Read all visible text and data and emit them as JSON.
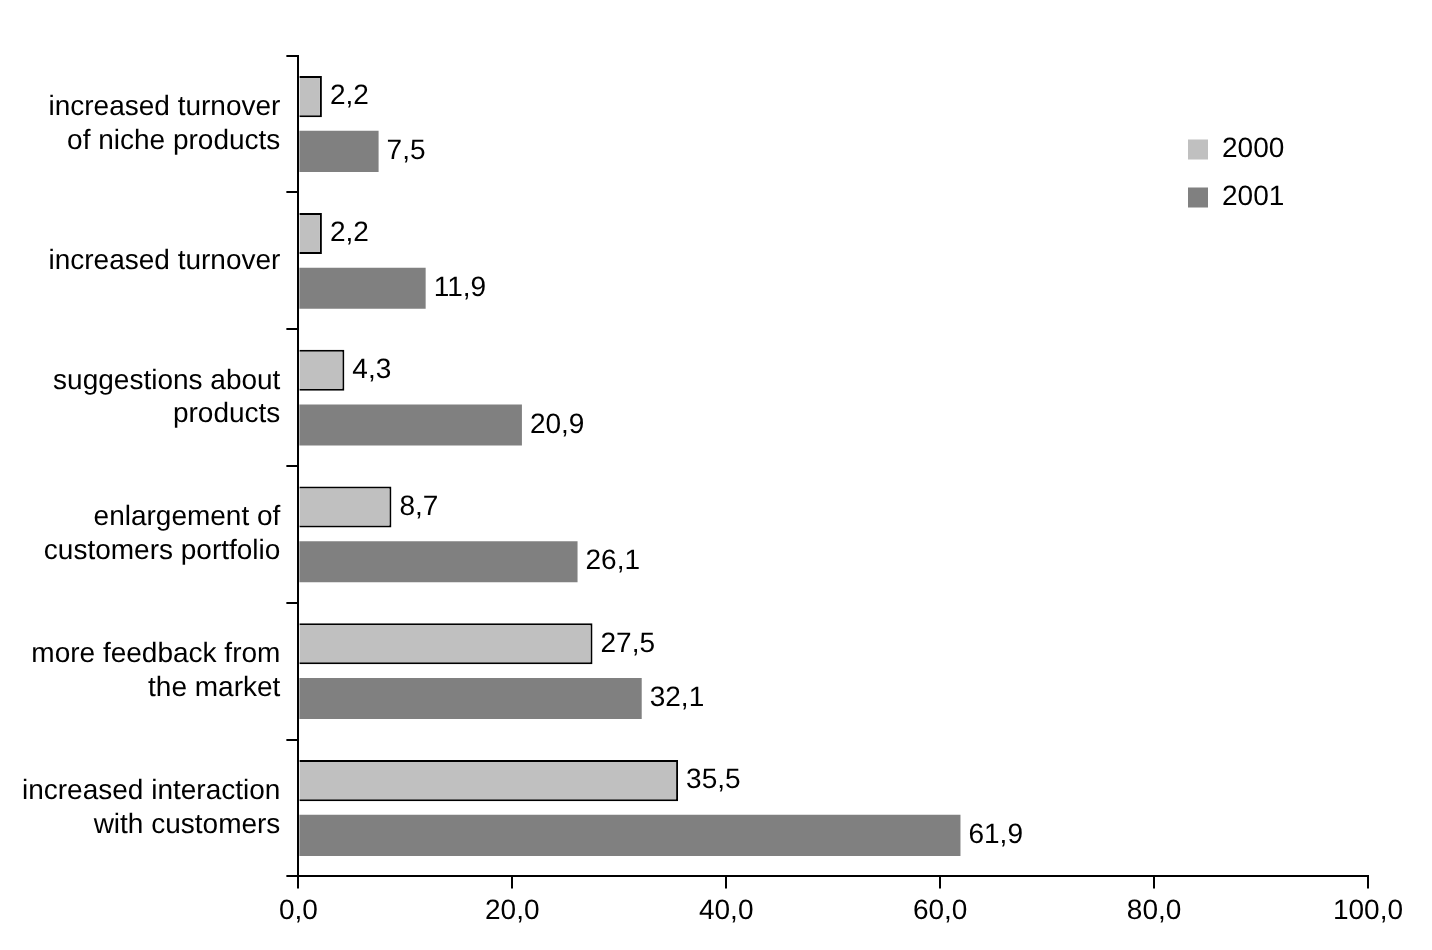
{
  "chart_data": {
    "type": "bar",
    "orientation": "horizontal",
    "categories": [
      "increased turnover\nof niche products",
      "increased turnover",
      "suggestions about\nproducts",
      "enlargement of\ncustomers portfolio",
      "more feedback from\nthe market",
      "increased interaction\nwith customers"
    ],
    "series": [
      {
        "name": "2000",
        "color": "#c0c0c0",
        "values": [
          2.2,
          2.2,
          4.3,
          8.7,
          27.5,
          35.5
        ],
        "value_labels": [
          "2,2",
          "2,2",
          "4,3",
          "8,7",
          "27,5",
          "35,5"
        ]
      },
      {
        "name": "2001",
        "color": "#808080",
        "values": [
          7.5,
          11.9,
          20.9,
          26.1,
          32.1,
          61.9
        ],
        "value_labels": [
          "7,5",
          "11,9",
          "20,9",
          "26,1",
          "32,1",
          "61,9"
        ]
      }
    ],
    "xlim": [
      0,
      100
    ],
    "xticks": [
      {
        "value": 0,
        "label": "0,0"
      },
      {
        "value": 20,
        "label": "20,0"
      },
      {
        "value": 40,
        "label": "40,0"
      },
      {
        "value": 60,
        "label": "60,0"
      },
      {
        "value": 80,
        "label": "80,0"
      },
      {
        "value": 100,
        "label": "100,0"
      }
    ],
    "grid": false,
    "legend": "top right"
  }
}
